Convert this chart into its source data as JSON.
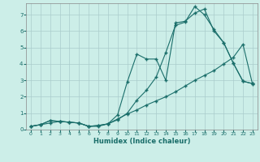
{
  "xlabel": "Humidex (Indice chaleur)",
  "bg_color": "#cceee8",
  "grid_color": "#aacccc",
  "line_color": "#1a6e6a",
  "xlim": [
    -0.5,
    23.5
  ],
  "ylim": [
    0,
    7.7
  ],
  "xticks": [
    0,
    1,
    2,
    3,
    4,
    5,
    6,
    7,
    8,
    9,
    10,
    11,
    12,
    13,
    14,
    15,
    16,
    17,
    18,
    19,
    20,
    21,
    22,
    23
  ],
  "yticks": [
    0,
    1,
    2,
    3,
    4,
    5,
    6,
    7
  ],
  "series1_x": [
    0,
    1,
    2,
    3,
    4,
    5,
    6,
    7,
    8,
    9,
    10,
    11,
    12,
    13,
    14,
    15,
    16,
    17,
    18,
    19,
    20,
    21,
    22,
    23
  ],
  "series1_y": [
    0.2,
    0.3,
    0.55,
    0.5,
    0.45,
    0.4,
    0.2,
    0.2,
    0.35,
    0.6,
    1.0,
    1.8,
    2.4,
    3.2,
    4.7,
    6.35,
    6.55,
    7.5,
    7.0,
    6.1,
    5.3,
    4.05,
    2.95,
    2.8
  ],
  "series2_x": [
    0,
    1,
    2,
    3,
    4,
    5,
    6,
    7,
    8,
    9,
    10,
    11,
    12,
    13,
    14,
    15,
    16,
    17,
    18,
    19,
    20,
    21,
    22,
    23
  ],
  "series2_y": [
    0.2,
    0.3,
    0.55,
    0.5,
    0.45,
    0.4,
    0.2,
    0.25,
    0.35,
    0.9,
    2.9,
    4.6,
    4.3,
    4.3,
    3.0,
    6.5,
    6.6,
    7.1,
    7.35,
    6.0,
    5.3,
    4.05,
    2.95,
    2.8
  ],
  "series3_x": [
    0,
    1,
    2,
    3,
    4,
    5,
    6,
    7,
    8,
    9,
    10,
    11,
    12,
    13,
    14,
    15,
    16,
    17,
    18,
    19,
    20,
    21,
    22,
    23
  ],
  "series3_y": [
    0.2,
    0.3,
    0.4,
    0.5,
    0.45,
    0.4,
    0.2,
    0.25,
    0.35,
    0.65,
    0.95,
    1.2,
    1.5,
    1.75,
    2.0,
    2.3,
    2.65,
    3.0,
    3.3,
    3.6,
    4.0,
    4.4,
    5.2,
    2.75
  ]
}
